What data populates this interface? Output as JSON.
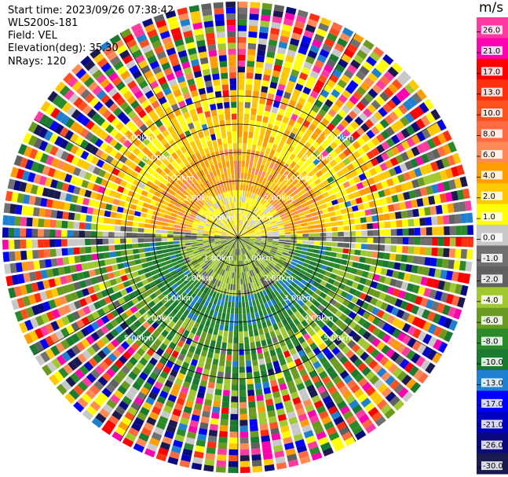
{
  "header": {
    "start_time": "Start time: 2023/09/26 07:38:42",
    "instrument": "WLS200s-181",
    "field": "Field: VEL",
    "elevation": "Elevation(deg): 35.30",
    "nrays": "NRays: 120"
  },
  "colorbar": {
    "unit": "m/s",
    "ticks": [
      "26.0",
      "21.0",
      "17.0",
      "13.0",
      "10.0",
      "8.0",
      "6.0",
      "4.0",
      "2.0",
      "1.0",
      "0.0",
      "-1.0",
      "-2.0",
      "-4.0",
      "-6.0",
      "-8.0",
      "-10.0",
      "-13.0",
      "-17.0",
      "-21.0",
      "-26.0",
      "-30.0"
    ],
    "colors": [
      "#ff3aa0",
      "#ff00b0",
      "#ff0000",
      "#ff3010",
      "#ff5020",
      "#ff6a40",
      "#ff8a55",
      "#ff9c00",
      "#ffc800",
      "#ffff00",
      "#c8c8c8",
      "#707070",
      "#606060",
      "#a0c830",
      "#6a9a20",
      "#2a8a2a",
      "#1a7a30",
      "#2080d0",
      "#0000ff",
      "#0000c0",
      "#0a0a80",
      "#1a1a50"
    ]
  },
  "range_labels": [
    "1.00km",
    "2.00km",
    "3.00km",
    "4.00km",
    "5.00km"
  ],
  "chart_data": {
    "type": "ppi",
    "field": "VEL",
    "nrays": 120,
    "elevation_deg": 35.3,
    "max_range_km": 5.0,
    "range_rings_km": [
      1,
      2,
      3,
      4,
      5
    ],
    "radials_deg": [
      0,
      30,
      60,
      90,
      120,
      150,
      180,
      210,
      240,
      270,
      300,
      330
    ],
    "velocity_range": [
      -30.0,
      26.0
    ]
  }
}
